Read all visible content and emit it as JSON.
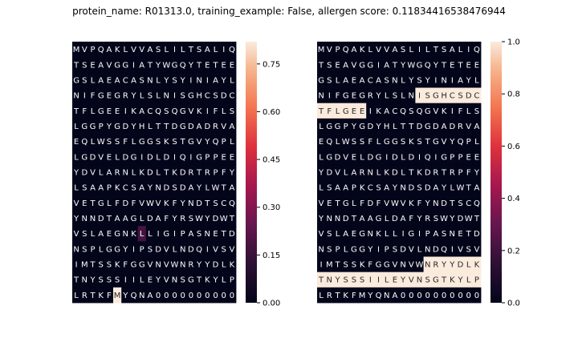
{
  "title": "protein_name: R01313.0, training_example: False, allergen score: 0.11834416538476944",
  "chart_data": [
    {
      "type": "heatmap",
      "colormap": "rocket",
      "vmin": 0,
      "vmax": 0.82,
      "colorbar_ticks": [
        "0.00",
        "0.15",
        "0.30",
        "0.45",
        "0.60",
        "0.75"
      ],
      "rows": [
        "MVPQAKLVVASLILTSALIQ",
        "TSEAVGGIATYWGQYTETEE",
        "GSLAEACASNLYSYINIAYL",
        "NIFGEGRYLSLNISGHCSDC",
        "TFLGEEIKACQSQGVKIFLS",
        "LGGPYGDYHLTTDGDADRVA",
        "EQLWSSFLGGSKSTGVYQPL",
        "LGDVELDGIDLDIQIGPPEE",
        "YDVLARNLKDLTKDRTRPFY",
        "LSAAPKCSAYNDSDAYLWTA",
        "VETGLFDFVWVKFYNDTSCQ",
        "YNNDTAAGLDAFYRSWYDWT",
        "VSLAEGNKLLIGIPASNETD",
        "NSPLGGYIPSDVLNDQIVSV",
        "IMTSSKFGGVNVWNRYYDLK",
        "TNYSSSIILEYVNSGTKYLP",
        "LRTKFMYQNA0000000000"
      ],
      "values": [
        {
          "row": 12,
          "col": 8,
          "value": 0.18
        },
        {
          "row": 16,
          "col": 5,
          "value": 0.82
        }
      ]
    },
    {
      "type": "heatmap",
      "colormap": "rocket",
      "vmin": 0,
      "vmax": 1.0,
      "colorbar_ticks": [
        "0.0",
        "0.2",
        "0.4",
        "0.6",
        "0.8",
        "1.0"
      ],
      "rows": [
        "MVPQAKLVVASLILTSALIQ",
        "TSEAVGGIATYWGQYTETEE",
        "GSLAEACASNLYSYINIAYL",
        "NIFGEGRYLSLNISGHCSDC",
        "TFLGEEIKACQSQGVKIFLS",
        "LGGPYGDYHLTTDGDADRVA",
        "EQLWSSFLGGSKSTGVYQPL",
        "LGDVELDGIDLDIQIGPPEE",
        "YDVLARNLKDLTKDRTRPFY",
        "LSAAPKCSAYNDSDAYLWTA",
        "VETGLFDFVWVKFYNDTSCQ",
        "YNNDTAAGLDAFYRSWYDWT",
        "VSLAEGNKLLIGIPASNETD",
        "NSPLGGYIPSDVLNDQIVSV",
        "IMTSSKFGGVNVWNRYYDLK",
        "TNYSSSIILEYVNSGTKYLP",
        "LRTKFMYQNA0000000000"
      ],
      "values": [
        {
          "row": 3,
          "col": 12,
          "value": 1
        },
        {
          "row": 3,
          "col": 13,
          "value": 1
        },
        {
          "row": 3,
          "col": 14,
          "value": 1
        },
        {
          "row": 3,
          "col": 15,
          "value": 1
        },
        {
          "row": 3,
          "col": 16,
          "value": 1
        },
        {
          "row": 3,
          "col": 17,
          "value": 1
        },
        {
          "row": 3,
          "col": 18,
          "value": 1
        },
        {
          "row": 3,
          "col": 19,
          "value": 1
        },
        {
          "row": 4,
          "col": 0,
          "value": 1
        },
        {
          "row": 4,
          "col": 1,
          "value": 1
        },
        {
          "row": 4,
          "col": 2,
          "value": 1
        },
        {
          "row": 4,
          "col": 3,
          "value": 1
        },
        {
          "row": 4,
          "col": 4,
          "value": 1
        },
        {
          "row": 4,
          "col": 5,
          "value": 1
        },
        {
          "row": 14,
          "col": 13,
          "value": 1
        },
        {
          "row": 14,
          "col": 14,
          "value": 1
        },
        {
          "row": 14,
          "col": 15,
          "value": 1
        },
        {
          "row": 14,
          "col": 16,
          "value": 1
        },
        {
          "row": 14,
          "col": 17,
          "value": 1
        },
        {
          "row": 14,
          "col": 18,
          "value": 1
        },
        {
          "row": 14,
          "col": 19,
          "value": 1
        },
        {
          "row": 15,
          "col": 0,
          "value": 1
        },
        {
          "row": 15,
          "col": 1,
          "value": 1
        },
        {
          "row": 15,
          "col": 2,
          "value": 1
        },
        {
          "row": 15,
          "col": 3,
          "value": 1
        },
        {
          "row": 15,
          "col": 4,
          "value": 1
        },
        {
          "row": 15,
          "col": 5,
          "value": 1
        },
        {
          "row": 15,
          "col": 6,
          "value": 1
        },
        {
          "row": 15,
          "col": 7,
          "value": 1
        },
        {
          "row": 15,
          "col": 8,
          "value": 1
        },
        {
          "row": 15,
          "col": 9,
          "value": 1
        },
        {
          "row": 15,
          "col": 10,
          "value": 1
        },
        {
          "row": 15,
          "col": 11,
          "value": 1
        },
        {
          "row": 15,
          "col": 12,
          "value": 1
        },
        {
          "row": 15,
          "col": 13,
          "value": 1
        },
        {
          "row": 15,
          "col": 14,
          "value": 1
        },
        {
          "row": 15,
          "col": 15,
          "value": 1
        },
        {
          "row": 15,
          "col": 16,
          "value": 1
        },
        {
          "row": 15,
          "col": 17,
          "value": 1
        },
        {
          "row": 15,
          "col": 18,
          "value": 1
        },
        {
          "row": 15,
          "col": 19,
          "value": 1
        }
      ]
    }
  ]
}
